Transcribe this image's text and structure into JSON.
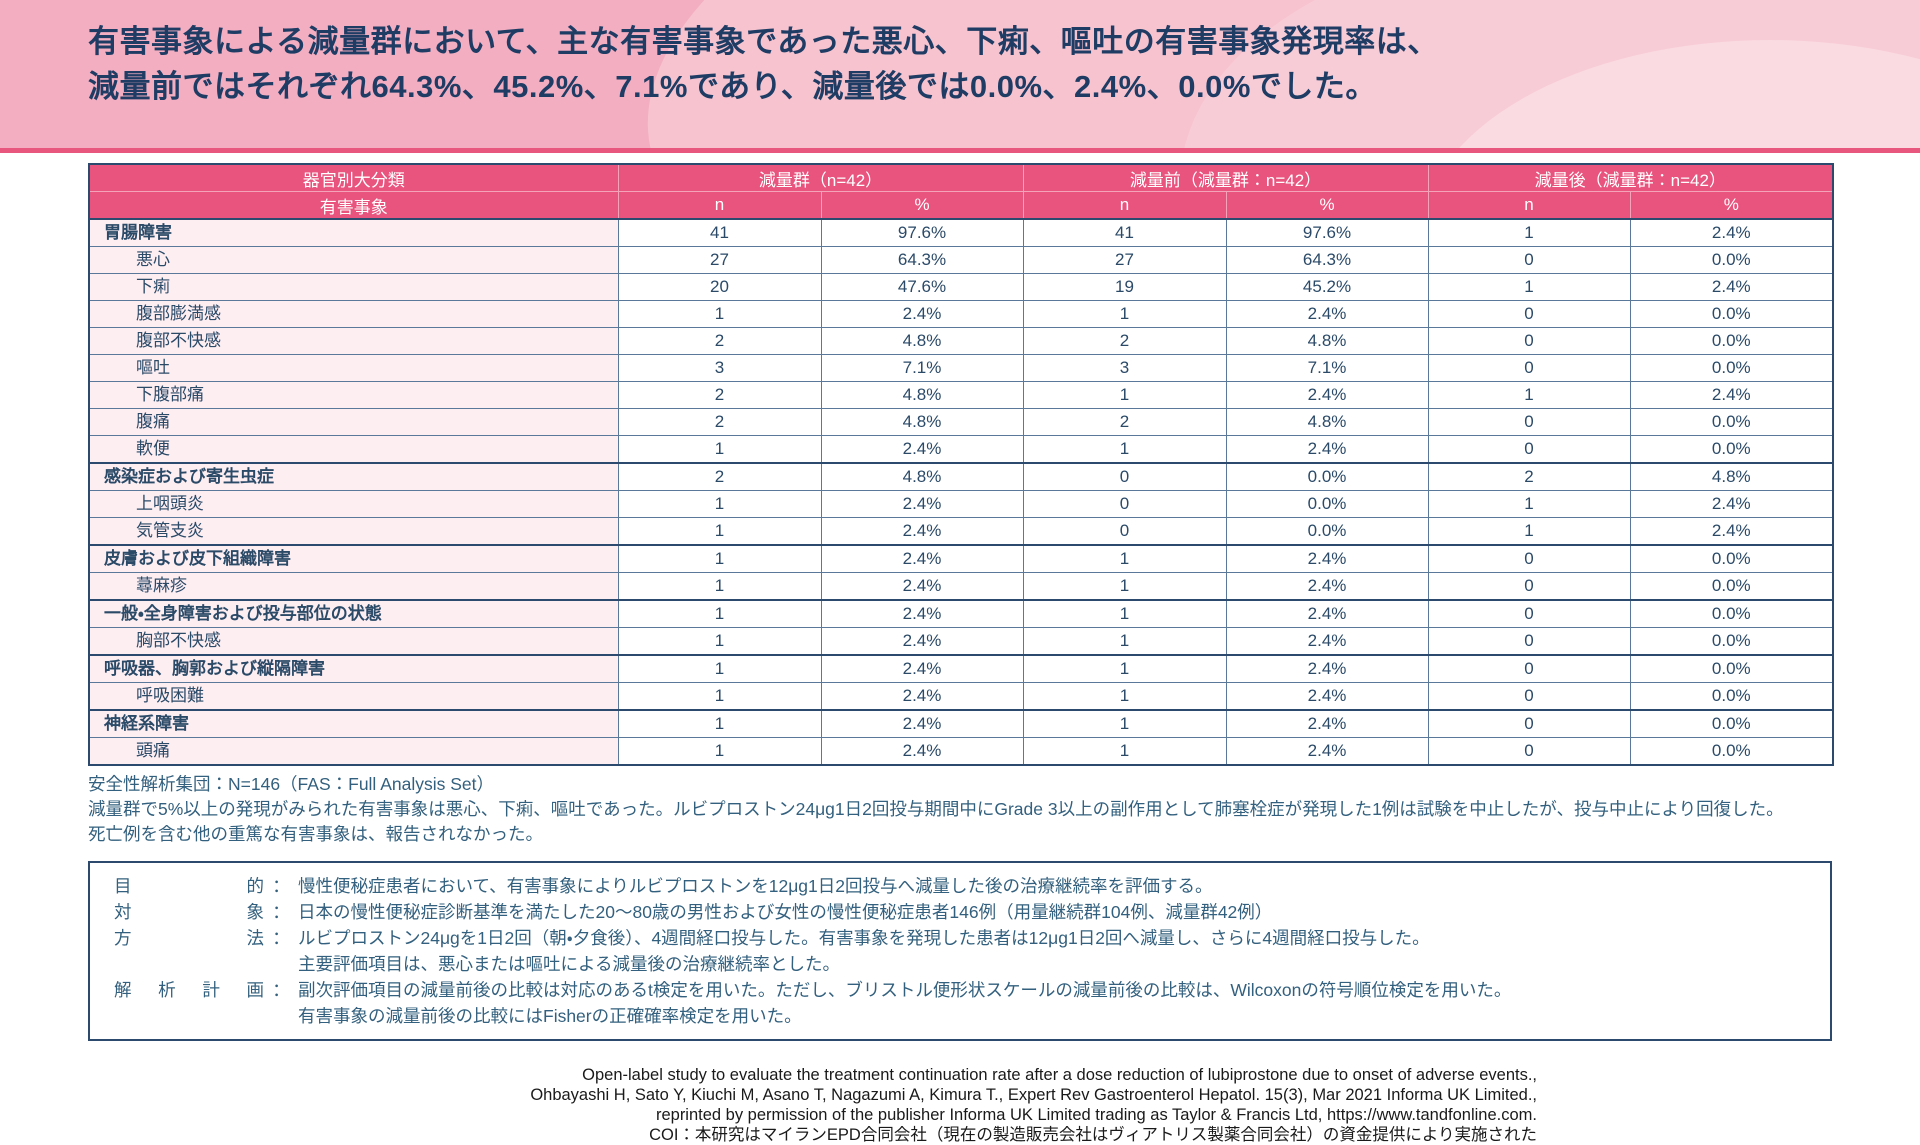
{
  "colors": {
    "banner_bg": "#f3aec1",
    "accent_pink": "#e8547e",
    "row_label_bg": "#fdeef2",
    "title_navy": "#1f3c64",
    "table_text": "#2b4a68",
    "note_blue": "#33607e"
  },
  "banner": {
    "title_lines": [
      "有害事象による減量群において、主な有害事象であった悪心、下痢、嘔吐の有害事象発現率は、",
      "減量前ではそれぞれ64.3%、45.2%、7.1%であり、減量後では0.0%、2.4%、0.0%でした。"
    ]
  },
  "table": {
    "corner_header": "器官別大分類",
    "sub_corner_header": "有害事象",
    "group_headers": [
      "減量群（n=42）",
      "減量前（減量群：n=42）",
      "減量後（減量群：n=42）"
    ],
    "value_headers": [
      "n",
      "%",
      "n",
      "%",
      "n",
      "%"
    ],
    "rows": [
      {
        "label": "胃腸障害",
        "bold": true,
        "values": [
          "41",
          "97.6%",
          "41",
          "97.6%",
          "1",
          "2.4%"
        ]
      },
      {
        "label": "悪心",
        "bold": false,
        "values": [
          "27",
          "64.3%",
          "27",
          "64.3%",
          "0",
          "0.0%"
        ]
      },
      {
        "label": "下痢",
        "bold": false,
        "values": [
          "20",
          "47.6%",
          "19",
          "45.2%",
          "1",
          "2.4%"
        ]
      },
      {
        "label": "腹部膨満感",
        "bold": false,
        "values": [
          "1",
          "2.4%",
          "1",
          "2.4%",
          "0",
          "0.0%"
        ]
      },
      {
        "label": "腹部不快感",
        "bold": false,
        "values": [
          "2",
          "4.8%",
          "2",
          "4.8%",
          "0",
          "0.0%"
        ]
      },
      {
        "label": "嘔吐",
        "bold": false,
        "values": [
          "3",
          "7.1%",
          "3",
          "7.1%",
          "0",
          "0.0%"
        ]
      },
      {
        "label": "下腹部痛",
        "bold": false,
        "values": [
          "2",
          "4.8%",
          "1",
          "2.4%",
          "1",
          "2.4%"
        ]
      },
      {
        "label": "腹痛",
        "bold": false,
        "values": [
          "2",
          "4.8%",
          "2",
          "4.8%",
          "0",
          "0.0%"
        ]
      },
      {
        "label": "軟便",
        "bold": false,
        "values": [
          "1",
          "2.4%",
          "1",
          "2.4%",
          "0",
          "0.0%"
        ]
      },
      {
        "label": "感染症および寄生虫症",
        "bold": true,
        "values": [
          "2",
          "4.8%",
          "0",
          "0.0%",
          "2",
          "4.8%"
        ]
      },
      {
        "label": "上咽頭炎",
        "bold": false,
        "values": [
          "1",
          "2.4%",
          "0",
          "0.0%",
          "1",
          "2.4%"
        ]
      },
      {
        "label": "気管支炎",
        "bold": false,
        "values": [
          "1",
          "2.4%",
          "0",
          "0.0%",
          "1",
          "2.4%"
        ]
      },
      {
        "label": "皮膚および皮下組織障害",
        "bold": true,
        "values": [
          "1",
          "2.4%",
          "1",
          "2.4%",
          "0",
          "0.0%"
        ]
      },
      {
        "label": "蕁麻疹",
        "bold": false,
        "values": [
          "1",
          "2.4%",
          "1",
          "2.4%",
          "0",
          "0.0%"
        ]
      },
      {
        "label": "一般・全身障害および投与部位の状態",
        "bold": true,
        "values": [
          "1",
          "2.4%",
          "1",
          "2.4%",
          "0",
          "0.0%"
        ]
      },
      {
        "label": "胸部不快感",
        "bold": false,
        "values": [
          "1",
          "2.4%",
          "1",
          "2.4%",
          "0",
          "0.0%"
        ]
      },
      {
        "label": "呼吸器、胸郭および縦隔障害",
        "bold": true,
        "values": [
          "1",
          "2.4%",
          "1",
          "2.4%",
          "0",
          "0.0%"
        ]
      },
      {
        "label": "呼吸困難",
        "bold": false,
        "values": [
          "1",
          "2.4%",
          "1",
          "2.4%",
          "0",
          "0.0%"
        ]
      },
      {
        "label": "神経系障害",
        "bold": true,
        "values": [
          "1",
          "2.4%",
          "1",
          "2.4%",
          "0",
          "0.0%"
        ]
      },
      {
        "label": "頭痛",
        "bold": false,
        "values": [
          "1",
          "2.4%",
          "1",
          "2.4%",
          "0",
          "0.0%"
        ]
      }
    ]
  },
  "footnotes": [
    "安全性解析集団：N=146（FAS：Full Analysis Set）",
    "減量群で5%以上の発現がみられた有害事象は悪心、下痢、嘔吐であった。ルビプロストン24μg1日2回投与期間中にGrade 3以上の副作用として肺塞栓症が発現した1例は試験を中止したが、投与中止により回復した。",
    "死亡例を含む他の重篤な有害事象は、報告されなかった。"
  ],
  "study_design": {
    "items": [
      {
        "label_chars": [
          "目",
          "的"
        ],
        "lines": [
          "慢性便秘症患者において、有害事象によりルビプロストンを12μg1日2回投与へ減量した後の治療継続率を評価する。"
        ]
      },
      {
        "label_chars": [
          "対",
          "象"
        ],
        "lines": [
          "日本の慢性便秘症診断基準を満たした20～80歳の男性および女性の慢性便秘症患者146例（用量継続群104例、減量群42例）"
        ]
      },
      {
        "label_chars": [
          "方",
          "法"
        ],
        "lines": [
          "ルビプロストン24μgを1日2回（朝・夕食後）、4週間経口投与した。有害事象を発現した患者は12μg1日2回へ減量し、さらに4週間経口投与した。",
          "主要評価項目は、悪心または嘔吐による減量後の治療継続率とした。"
        ]
      },
      {
        "label_chars": [
          "解",
          "析",
          "計",
          "画"
        ],
        "lines": [
          "副次評価項目の減量前後の比較は対応のあるt検定を用いた。ただし、ブリストル便形状スケールの減量前後の比較は、Wilcoxonの符号順位検定を用いた。",
          "有害事象の減量前後の比較にはFisherの正確確率検定を用いた。"
        ]
      }
    ]
  },
  "citation_lines": [
    "Open-label study to evaluate the treatment continuation rate after a dose reduction of lubiprostone due to onset of adverse events.,",
    "Ohbayashi H, Sato Y, Kiuchi M, Asano T, Nagazumi A, Kimura T., Expert Rev Gastroenterol Hepatol. 15(3), Mar 2021 Informa UK Limited.,",
    "reprinted by permission of the publisher Informa UK Limited trading as Taylor & Francis Ltd, https://www.tandfonline.com.",
    "COI：本研究はマイランEPD合同会社（現在の製造販売会社はヴィアトリス製薬合同会社）の資金提供により実施された"
  ]
}
